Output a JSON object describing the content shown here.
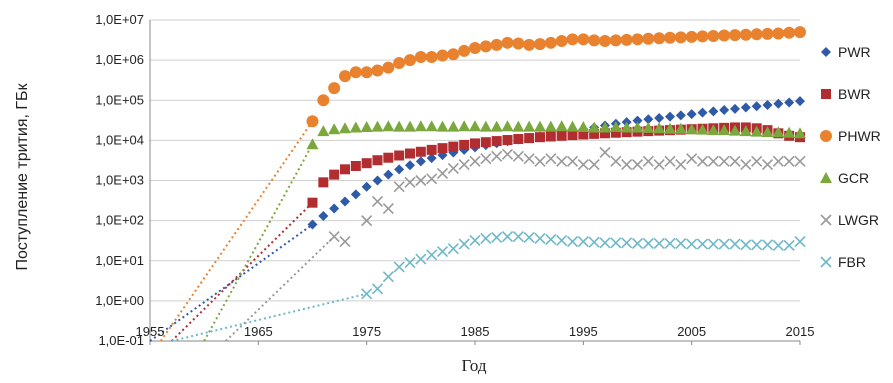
{
  "chart_data": {
    "type": "scatter",
    "title": "",
    "xlabel": "Год",
    "ylabel": "Поступление трития, ГБк",
    "xlim": [
      1955,
      2015
    ],
    "xticks": [
      {
        "value": 1955,
        "label": "1955"
      },
      {
        "value": 1965,
        "label": "1965"
      },
      {
        "value": 1975,
        "label": "1975"
      },
      {
        "value": 1985,
        "label": "1985"
      },
      {
        "value": 1995,
        "label": "1995"
      },
      {
        "value": 2005,
        "label": "2005"
      },
      {
        "value": 2015,
        "label": "2015"
      }
    ],
    "yscale": "log",
    "ylim": [
      0.1,
      10000000
    ],
    "yticks": [
      {
        "value": 0.1,
        "label": "1,0E-01"
      },
      {
        "value": 1,
        "label": "1,0E+00"
      },
      {
        "value": 10,
        "label": "1,0E+01"
      },
      {
        "value": 100,
        "label": "1,0E+02"
      },
      {
        "value": 1000,
        "label": "1,0E+03"
      },
      {
        "value": 10000,
        "label": "1,0E+04"
      },
      {
        "value": 100000,
        "label": "1,0E+05"
      },
      {
        "value": 1000000,
        "label": "1,0E+06"
      },
      {
        "value": 10000000,
        "label": "1,0E+07"
      }
    ],
    "grid": "horizontal",
    "legend_position": "right",
    "series": [
      {
        "name": "PWR",
        "marker": "diamond",
        "color": "#2f5aa8",
        "trend_from": [
          1955,
          0.1
        ],
        "x": [
          1970,
          1971,
          1972,
          1973,
          1974,
          1975,
          1976,
          1977,
          1978,
          1979,
          1980,
          1981,
          1982,
          1983,
          1984,
          1985,
          1986,
          1987,
          1988,
          1989,
          1990,
          1991,
          1992,
          1993,
          1994,
          1995,
          1996,
          1997,
          1998,
          1999,
          2000,
          2001,
          2002,
          2003,
          2004,
          2005,
          2006,
          2007,
          2008,
          2009,
          2010,
          2011,
          2012,
          2013,
          2014,
          2015
        ],
        "y": [
          80,
          130,
          200,
          300,
          450,
          700,
          1000,
          1400,
          1900,
          2400,
          3000,
          3600,
          4300,
          5000,
          5800,
          6700,
          7600,
          8500,
          9500,
          10500,
          11500,
          12500,
          13500,
          15000,
          17000,
          19000,
          21000,
          23500,
          26000,
          28500,
          31000,
          33500,
          36000,
          39000,
          42000,
          45000,
          49000,
          53000,
          57000,
          61000,
          66000,
          71000,
          76000,
          82000,
          88000,
          95000
        ]
      },
      {
        "name": "BWR",
        "marker": "square",
        "color": "#b22d30",
        "trend_from": [
          1957,
          0.1
        ],
        "x": [
          1970,
          1971,
          1972,
          1973,
          1974,
          1975,
          1976,
          1977,
          1978,
          1979,
          1980,
          1981,
          1982,
          1983,
          1984,
          1985,
          1986,
          1987,
          1988,
          1989,
          1990,
          1991,
          1992,
          1993,
          1994,
          1995,
          1996,
          1997,
          1998,
          1999,
          2000,
          2001,
          2002,
          2003,
          2004,
          2005,
          2006,
          2007,
          2008,
          2009,
          2010,
          2011,
          2012,
          2013,
          2014,
          2015
        ],
        "y": [
          280,
          900,
          1400,
          1900,
          2300,
          2700,
          3200,
          3700,
          4200,
          4700,
          5200,
          5800,
          6400,
          7000,
          7700,
          8400,
          9000,
          9600,
          10200,
          10800,
          11400,
          12000,
          12500,
          13000,
          13500,
          14000,
          14500,
          15000,
          15500,
          16000,
          16500,
          17000,
          17500,
          18000,
          18500,
          19000,
          19500,
          20000,
          20500,
          21000,
          21000,
          20000,
          18000,
          15000,
          13000,
          12000
        ]
      },
      {
        "name": "PHWR",
        "marker": "circle",
        "color": "#e9822f",
        "trend_from": [
          1956,
          0.1
        ],
        "x": [
          1970,
          1971,
          1972,
          1973,
          1974,
          1975,
          1976,
          1977,
          1978,
          1979,
          1980,
          1981,
          1982,
          1983,
          1984,
          1985,
          1986,
          1987,
          1988,
          1989,
          1990,
          1991,
          1992,
          1993,
          1994,
          1995,
          1996,
          1997,
          1998,
          1999,
          2000,
          2001,
          2002,
          2003,
          2004,
          2005,
          2006,
          2007,
          2008,
          2009,
          2010,
          2011,
          2012,
          2013,
          2014,
          2015
        ],
        "y": [
          30000,
          100000,
          200000,
          400000,
          500000,
          500000,
          550000,
          650000,
          850000,
          1000000,
          1200000,
          1200000,
          1300000,
          1400000,
          1700000,
          2000000,
          2200000,
          2400000,
          2700000,
          2600000,
          2400000,
          2500000,
          2700000,
          3000000,
          3300000,
          3300000,
          3100000,
          3000000,
          3100000,
          3200000,
          3300000,
          3400000,
          3500000,
          3600000,
          3700000,
          3800000,
          3900000,
          4000000,
          4100000,
          4200000,
          4300000,
          4400000,
          4500000,
          4600000,
          4800000,
          5000000
        ]
      },
      {
        "name": "GCR",
        "marker": "triangle",
        "color": "#7aa83c",
        "trend_from": [
          1960,
          0.1
        ],
        "x": [
          1970,
          1971,
          1972,
          1973,
          1974,
          1975,
          1976,
          1977,
          1978,
          1979,
          1980,
          1981,
          1982,
          1983,
          1984,
          1985,
          1986,
          1987,
          1988,
          1989,
          1990,
          1991,
          1992,
          1993,
          1994,
          1995,
          1996,
          1997,
          1998,
          1999,
          2000,
          2001,
          2002,
          2003,
          2004,
          2005,
          2006,
          2007,
          2008,
          2009,
          2010,
          2011,
          2012,
          2013,
          2014,
          2015
        ],
        "y": [
          8000,
          17000,
          19000,
          20000,
          21000,
          21500,
          22000,
          22500,
          22000,
          22000,
          22500,
          22500,
          22000,
          22000,
          22500,
          22500,
          22000,
          22000,
          22500,
          22000,
          22000,
          22000,
          22000,
          22500,
          22000,
          21500,
          21000,
          21000,
          21500,
          21000,
          21000,
          20500,
          20000,
          19500,
          19500,
          19000,
          18500,
          18000,
          18000,
          17500,
          17000,
          16500,
          16000,
          16000,
          15500,
          15000
        ]
      },
      {
        "name": "LWGR",
        "marker": "x",
        "color": "#9a9a9a",
        "trend_from": [
          1962,
          0.1
        ],
        "x": [
          1972,
          1973,
          1975,
          1976,
          1977,
          1978,
          1979,
          1980,
          1981,
          1982,
          1983,
          1984,
          1985,
          1986,
          1987,
          1988,
          1989,
          1990,
          1991,
          1992,
          1993,
          1994,
          1995,
          1996,
          1997,
          1998,
          1999,
          2000,
          2001,
          2002,
          2003,
          2004,
          2005,
          2006,
          2007,
          2008,
          2009,
          2010,
          2011,
          2012,
          2013,
          2014,
          2015
        ],
        "y": [
          40,
          30,
          100,
          300,
          200,
          700,
          900,
          1000,
          1100,
          1500,
          2000,
          2500,
          3000,
          3500,
          4000,
          4500,
          4000,
          3500,
          3000,
          3500,
          3000,
          3000,
          2500,
          2500,
          5000,
          3000,
          2500,
          2500,
          3000,
          2500,
          3000,
          2500,
          3500,
          3000,
          3000,
          3000,
          3000,
          2500,
          3000,
          2500,
          3000,
          3000,
          3000
        ]
      },
      {
        "name": "FBR",
        "marker": "x",
        "color": "#6fb8c8",
        "trend_from": [
          1957,
          0.1
        ],
        "x": [
          1975,
          1976,
          1977,
          1978,
          1979,
          1980,
          1981,
          1982,
          1983,
          1984,
          1985,
          1986,
          1987,
          1988,
          1989,
          1990,
          1991,
          1992,
          1993,
          1994,
          1995,
          1996,
          1997,
          1998,
          1999,
          2000,
          2001,
          2002,
          2003,
          2004,
          2005,
          2006,
          2007,
          2008,
          2009,
          2010,
          2011,
          2012,
          2013,
          2014,
          2015
        ],
        "y": [
          1.5,
          2,
          4,
          7,
          9,
          11,
          14,
          17,
          20,
          26,
          32,
          36,
          38,
          40,
          40,
          38,
          36,
          34,
          32,
          30,
          30,
          29,
          28,
          28,
          28,
          27,
          27,
          27,
          27,
          27,
          26,
          26,
          26,
          26,
          26,
          25,
          25,
          25,
          24,
          24,
          30
        ]
      }
    ]
  }
}
